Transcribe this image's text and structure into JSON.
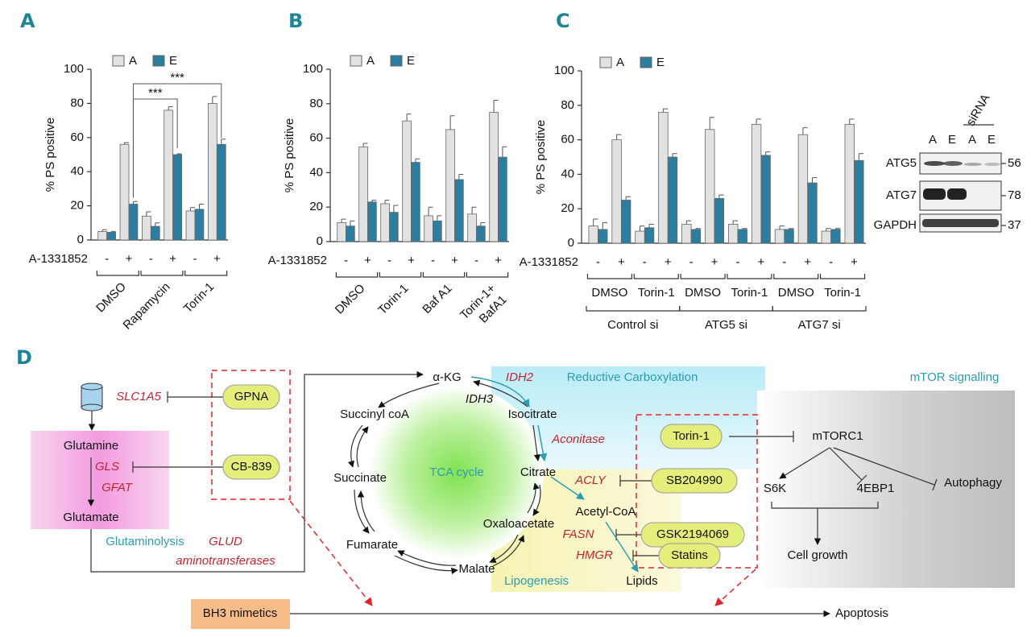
{
  "chart_data": [
    {
      "type": "bar",
      "panel_label": "A",
      "ylabel": "% PS positive",
      "xlabel": "A-1331852",
      "categories": [
        "-",
        "+",
        "-",
        "+",
        "-",
        "+"
      ],
      "groups": [
        [
          "DMSO"
        ],
        [
          "Rapamycin"
        ],
        [
          "Torin-1"
        ]
      ],
      "series": [
        {
          "name": "A",
          "color": "#e2e2e2",
          "values": [
            5,
            56,
            14,
            76,
            17,
            80
          ],
          "errors": [
            1,
            1,
            2.5,
            2,
            2,
            4
          ]
        },
        {
          "name": "E",
          "color": "#2d7e9e",
          "values": [
            4.5,
            21,
            8,
            50,
            18,
            56
          ],
          "errors": [
            0.5,
            1.5,
            2,
            0.5,
            3,
            3
          ]
        }
      ],
      "ylim": [
        0,
        100
      ],
      "yticks": [
        0,
        20,
        40,
        60,
        80,
        100
      ],
      "annotations": [
        "***",
        "***"
      ]
    },
    {
      "type": "bar",
      "panel_label": "B",
      "ylabel": "% PS positive",
      "xlabel": "A-1331852",
      "categories": [
        "-",
        "+",
        "-",
        "+",
        "-",
        "+",
        "-",
        "+"
      ],
      "groups": [
        [
          "DMSO"
        ],
        [
          "Torin-1"
        ],
        [
          "Baf A1"
        ],
        [
          "Torin-1+",
          "BafA1"
        ]
      ],
      "series": [
        {
          "name": "A",
          "color": "#e2e2e2",
          "values": [
            11,
            55,
            22,
            70,
            15,
            65,
            16,
            75
          ],
          "errors": [
            2,
            2,
            2,
            4,
            5,
            8,
            4,
            7
          ]
        },
        {
          "name": "E",
          "color": "#2d7e9e",
          "values": [
            9,
            23,
            17,
            46,
            12,
            36,
            9,
            49
          ],
          "errors": [
            3,
            1,
            4,
            2,
            3,
            3,
            2,
            6
          ]
        }
      ],
      "ylim": [
        0,
        100
      ],
      "yticks": [
        0,
        20,
        40,
        60,
        80,
        100
      ]
    },
    {
      "type": "bar",
      "panel_label": "C",
      "ylabel": "% PS positive",
      "xlabel": "A-1331852",
      "categories": [
        "-",
        "+",
        "-",
        "+",
        "-",
        "+",
        "-",
        "+",
        "-",
        "+",
        "-",
        "+"
      ],
      "groups": [
        [
          "DMSO"
        ],
        [
          "Torin-1"
        ],
        [
          "DMSO"
        ],
        [
          "Torin-1"
        ],
        [
          "DMSO"
        ],
        [
          "Torin-1"
        ]
      ],
      "supergroups": [
        "Control si",
        "ATG5 si",
        "ATG7 si"
      ],
      "series": [
        {
          "name": "A",
          "color": "#e2e2e2",
          "values": [
            10,
            60,
            7,
            76,
            11,
            66,
            11,
            69,
            8,
            63,
            7,
            69
          ],
          "errors": [
            4,
            3,
            3,
            2,
            2,
            7,
            2,
            3,
            2,
            4,
            1.5,
            3
          ]
        },
        {
          "name": "E",
          "color": "#2d7e9e",
          "values": [
            8,
            25,
            9,
            50,
            8,
            26,
            8,
            51,
            8,
            35,
            8,
            48
          ],
          "errors": [
            4,
            2,
            2,
            2,
            0.5,
            2,
            0.5,
            2,
            0.5,
            3,
            0.5,
            4
          ]
        }
      ],
      "ylim": [
        0,
        100
      ],
      "yticks": [
        0,
        20,
        40,
        60,
        80,
        100
      ]
    }
  ],
  "blot": {
    "header": "siRNA",
    "lanes": [
      "A",
      "E",
      "A",
      "E"
    ],
    "rows": [
      {
        "protein": "ATG5",
        "kda": "56"
      },
      {
        "protein": "ATG7",
        "kda": "78"
      },
      {
        "protein": "GAPDH",
        "kda": "37"
      }
    ]
  },
  "diagram": {
    "panel_label": "D",
    "labels": {
      "slc1a5": "SLC1A5",
      "gpna": "GPNA",
      "glutamine": "Glutamine",
      "gls": "GLS",
      "gfat": "GFAT",
      "cb839": "CB-839",
      "glutamate": "Glutamate",
      "glutaminolysis": "Glutaminolysis",
      "glud": "GLUD",
      "aminotransferases": "aminotransferases",
      "akg": "α-KG",
      "idh2": "IDH2",
      "idh3": "IDH3",
      "reductive": "Reductive Carboxylation",
      "mtor_signalling": "mTOR signalling",
      "succinylcoa": "Succinyl coA",
      "isocitrate": "Isocitrate",
      "aconitase": "Aconitase",
      "torin": "Torin-1",
      "mtorc1": "mTORC1",
      "tca": "TCA cycle",
      "succinate": "Succinate",
      "citrate": "Citrate",
      "acly": "ACLY",
      "sb": "SB204990",
      "s6k": "S6K",
      "ebp1": "4EBP1",
      "autophagy": "Autophagy",
      "acetylcoa": "Acetyl-CoA",
      "oxaloacetate": "Oxaloacetate",
      "fasn": "FASN",
      "gsk": "GSK2194069",
      "fumarate": "Fumarate",
      "hmgr": "HMGR",
      "statins": "Statins",
      "cellgrowth": "Cell growth",
      "malate": "Malate",
      "lipogenesis": "Lipogenesis",
      "lipids": "Lipids",
      "bh3": "BH3 mimetics",
      "apoptosis": "Apoptosis"
    }
  }
}
